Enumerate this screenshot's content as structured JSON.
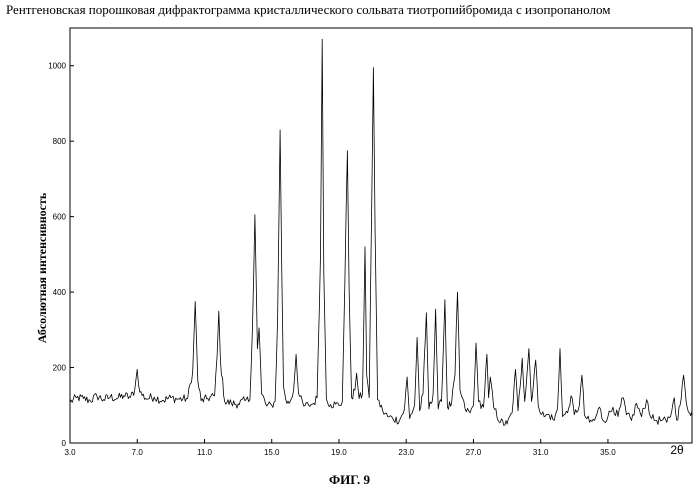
{
  "title": "Рентгеновская порошковая дифрактограмма кристаллического сольвата тиотропийбромида с изопропанолом",
  "caption": "ФИГ. 9",
  "chart_data": {
    "type": "line",
    "ylabel": "Абсолютная интенсивность",
    "xlabel": "2θ",
    "xlim": [
      3.0,
      40.0
    ],
    "ylim": [
      0,
      1100
    ],
    "x_ticks": [
      3.0,
      7.0,
      11.0,
      15.0,
      19.0,
      23.0,
      27.0,
      31.0,
      35.0
    ],
    "x_tick_labels": [
      "3.0",
      "7.0",
      "11.0",
      "15.0",
      "19.0",
      "23.0",
      "27.0",
      "31.0",
      "35.0"
    ],
    "y_ticks": [
      0,
      200,
      400,
      600,
      800,
      1000
    ],
    "y_tick_labels": [
      "0",
      "200",
      "400",
      "600",
      "800",
      "1000"
    ],
    "grid": false,
    "line_color": "#000000",
    "series": [
      {
        "points": [
          [
            3.0,
            108
          ],
          [
            3.4,
            120
          ],
          [
            3.8,
            118
          ],
          [
            4.2,
            112
          ],
          [
            4.6,
            125
          ],
          [
            5.0,
            115
          ],
          [
            5.4,
            122
          ],
          [
            5.8,
            118
          ],
          [
            6.2,
            126
          ],
          [
            6.6,
            121
          ],
          [
            6.85,
            140
          ],
          [
            7.0,
            195
          ],
          [
            7.15,
            135
          ],
          [
            7.5,
            118
          ],
          [
            8.0,
            122
          ],
          [
            8.5,
            113
          ],
          [
            9.0,
            120
          ],
          [
            9.5,
            116
          ],
          [
            10.0,
            118
          ],
          [
            10.3,
            190
          ],
          [
            10.45,
            375
          ],
          [
            10.6,
            165
          ],
          [
            10.8,
            112
          ],
          [
            11.2,
            118
          ],
          [
            11.6,
            125
          ],
          [
            11.75,
            230
          ],
          [
            11.85,
            350
          ],
          [
            11.95,
            215
          ],
          [
            12.2,
            110
          ],
          [
            12.6,
            105
          ],
          [
            13.0,
            104
          ],
          [
            13.4,
            112
          ],
          [
            13.7,
            115
          ],
          [
            13.85,
            300
          ],
          [
            14.0,
            605
          ],
          [
            14.15,
            250
          ],
          [
            14.25,
            305
          ],
          [
            14.4,
            130
          ],
          [
            14.7,
            98
          ],
          [
            15.0,
            100
          ],
          [
            15.2,
            110
          ],
          [
            15.35,
            330
          ],
          [
            15.5,
            830
          ],
          [
            15.6,
            450
          ],
          [
            15.7,
            150
          ],
          [
            15.9,
            105
          ],
          [
            16.1,
            110
          ],
          [
            16.3,
            140
          ],
          [
            16.45,
            235
          ],
          [
            16.6,
            130
          ],
          [
            16.9,
            98
          ],
          [
            17.2,
            100
          ],
          [
            17.5,
            105
          ],
          [
            17.7,
            120
          ],
          [
            17.9,
            500
          ],
          [
            18.0,
            1070
          ],
          [
            18.1,
            450
          ],
          [
            18.25,
            115
          ],
          [
            18.5,
            102
          ],
          [
            18.8,
            103
          ],
          [
            19.0,
            100
          ],
          [
            19.2,
            110
          ],
          [
            19.35,
            430
          ],
          [
            19.5,
            775
          ],
          [
            19.6,
            410
          ],
          [
            19.75,
            120
          ],
          [
            19.95,
            140
          ],
          [
            20.05,
            185
          ],
          [
            20.2,
            118
          ],
          [
            20.4,
            130
          ],
          [
            20.55,
            520
          ],
          [
            20.65,
            180
          ],
          [
            20.8,
            120
          ],
          [
            20.95,
            650
          ],
          [
            21.05,
            995
          ],
          [
            21.15,
            560
          ],
          [
            21.3,
            115
          ],
          [
            21.6,
            85
          ],
          [
            21.9,
            70
          ],
          [
            22.2,
            65
          ],
          [
            22.6,
            60
          ],
          [
            22.9,
            90
          ],
          [
            23.05,
            175
          ],
          [
            23.2,
            65
          ],
          [
            23.5,
            100
          ],
          [
            23.65,
            280
          ],
          [
            23.8,
            85
          ],
          [
            24.0,
            130
          ],
          [
            24.2,
            345
          ],
          [
            24.35,
            90
          ],
          [
            24.6,
            130
          ],
          [
            24.75,
            355
          ],
          [
            24.9,
            90
          ],
          [
            25.1,
            110
          ],
          [
            25.3,
            380
          ],
          [
            25.45,
            95
          ],
          [
            25.7,
            105
          ],
          [
            25.9,
            180
          ],
          [
            26.05,
            400
          ],
          [
            26.2,
            140
          ],
          [
            26.5,
            90
          ],
          [
            26.8,
            80
          ],
          [
            27.0,
            100
          ],
          [
            27.15,
            265
          ],
          [
            27.3,
            110
          ],
          [
            27.6,
            95
          ],
          [
            27.8,
            235
          ],
          [
            27.9,
            120
          ],
          [
            28.0,
            175
          ],
          [
            28.2,
            95
          ],
          [
            28.6,
            55
          ],
          [
            29.0,
            50
          ],
          [
            29.3,
            80
          ],
          [
            29.5,
            195
          ],
          [
            29.65,
            85
          ],
          [
            29.9,
            225
          ],
          [
            30.05,
            110
          ],
          [
            30.3,
            250
          ],
          [
            30.45,
            110
          ],
          [
            30.7,
            220
          ],
          [
            30.85,
            100
          ],
          [
            31.2,
            70
          ],
          [
            31.5,
            75
          ],
          [
            31.8,
            60
          ],
          [
            32.0,
            90
          ],
          [
            32.15,
            250
          ],
          [
            32.3,
            70
          ],
          [
            32.6,
            80
          ],
          [
            32.8,
            125
          ],
          [
            33.0,
            75
          ],
          [
            33.3,
            100
          ],
          [
            33.45,
            180
          ],
          [
            33.6,
            75
          ],
          [
            33.9,
            55
          ],
          [
            34.2,
            60
          ],
          [
            34.5,
            95
          ],
          [
            34.7,
            60
          ],
          [
            35.0,
            70
          ],
          [
            35.3,
            95
          ],
          [
            35.6,
            70
          ],
          [
            35.9,
            120
          ],
          [
            36.1,
            75
          ],
          [
            36.4,
            60
          ],
          [
            36.7,
            105
          ],
          [
            37.0,
            70
          ],
          [
            37.3,
            115
          ],
          [
            37.6,
            65
          ],
          [
            37.9,
            60
          ],
          [
            38.2,
            60
          ],
          [
            38.5,
            55
          ],
          [
            38.8,
            85
          ],
          [
            38.95,
            120
          ],
          [
            39.1,
            60
          ],
          [
            39.35,
            115
          ],
          [
            39.5,
            180
          ],
          [
            39.65,
            110
          ],
          [
            39.85,
            80
          ],
          [
            40.0,
            85
          ]
        ]
      }
    ]
  }
}
